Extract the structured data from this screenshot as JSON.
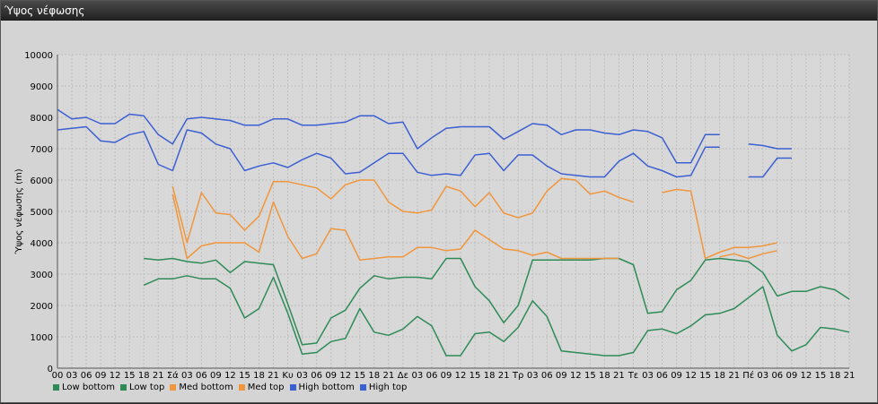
{
  "window": {
    "title": "Ύψος νέφωσης"
  },
  "chart_data": {
    "type": "line",
    "ylabel": "Ύψος νέφωσης (m)",
    "ylim": [
      0,
      10000
    ],
    "yticks": [
      0,
      1000,
      2000,
      3000,
      4000,
      5000,
      6000,
      7000,
      8000,
      9000,
      10000
    ],
    "xtick_labels": [
      "00",
      "03",
      "06",
      "09",
      "12",
      "15",
      "18",
      "21",
      "Σά",
      "03",
      "06",
      "09",
      "12",
      "15",
      "18",
      "21",
      "Κυ",
      "03",
      "06",
      "09",
      "12",
      "15",
      "18",
      "21",
      "Δε",
      "03",
      "06",
      "09",
      "12",
      "15",
      "18",
      "21",
      "Τρ",
      "03",
      "06",
      "09",
      "12",
      "15",
      "18",
      "21",
      "Τε",
      "03",
      "06",
      "09",
      "12",
      "15",
      "18",
      "21",
      "Πέ",
      "03",
      "06",
      "09",
      "12",
      "15",
      "18",
      "21"
    ],
    "grid": true,
    "legend_position": "bottom",
    "series": [
      {
        "name": "Low bottom",
        "color": "#2e8b57",
        "values": [
          null,
          null,
          null,
          null,
          null,
          null,
          2650,
          2850,
          2850,
          2950,
          2850,
          2850,
          2550,
          1600,
          1900,
          2900,
          1750,
          450,
          500,
          850,
          950,
          1900,
          1150,
          1050,
          1250,
          1650,
          1350,
          400,
          400,
          1100,
          1150,
          850,
          1300,
          2150,
          1650,
          550,
          500,
          450,
          400,
          400,
          500,
          1200,
          1250,
          1100,
          1350,
          1700,
          1750,
          1900,
          2250,
          2600,
          1050,
          550,
          750,
          1300,
          1250,
          1150
        ]
      },
      {
        "name": "Low top",
        "color": "#2e8b57",
        "values": [
          null,
          null,
          null,
          null,
          null,
          null,
          3500,
          3450,
          3500,
          3400,
          3350,
          3450,
          3050,
          3400,
          3350,
          3300,
          2050,
          750,
          800,
          1600,
          1850,
          2550,
          2950,
          2850,
          2900,
          2900,
          2850,
          3500,
          3500,
          2600,
          2150,
          1450,
          2000,
          3450,
          3450,
          3450,
          3450,
          3450,
          3500,
          3500,
          3300,
          1750,
          1800,
          2500,
          2800,
          3450,
          3500,
          3450,
          3400,
          3050,
          2300,
          2450,
          2450,
          2600,
          2500,
          2200
        ]
      },
      {
        "name": "Med bottom",
        "color": "#f0963c",
        "values": [
          null,
          null,
          null,
          null,
          null,
          null,
          null,
          null,
          5550,
          3500,
          3900,
          4000,
          4000,
          4000,
          3700,
          5300,
          4200,
          3500,
          3650,
          4450,
          4400,
          3450,
          3500,
          3550,
          3550,
          3850,
          3850,
          3750,
          3800,
          4400,
          4100,
          3800,
          3750,
          3600,
          3700,
          3500,
          3500,
          3500,
          3500,
          3500,
          null,
          null,
          null,
          null,
          null,
          null,
          3550,
          3650,
          3500,
          3650,
          3750,
          null,
          null,
          null,
          null,
          null
        ]
      },
      {
        "name": "Med top",
        "color": "#f0963c",
        "values": [
          null,
          null,
          null,
          null,
          null,
          null,
          null,
          null,
          5800,
          4000,
          5600,
          4950,
          4900,
          4400,
          4850,
          5950,
          5950,
          5850,
          5750,
          5400,
          5850,
          6000,
          6000,
          5300,
          5000,
          4950,
          5050,
          5800,
          5650,
          5150,
          5600,
          4950,
          4800,
          4950,
          5650,
          6050,
          6000,
          5550,
          5650,
          5450,
          5300,
          null,
          5600,
          5700,
          5650,
          3500,
          3700,
          3850,
          3850,
          3900,
          4000,
          null,
          null,
          null,
          null,
          null
        ]
      },
      {
        "name": "High bottom",
        "color": "#3c5fd2",
        "values": [
          7600,
          7650,
          7700,
          7250,
          7200,
          7450,
          7550,
          6500,
          6300,
          7600,
          7500,
          7150,
          7000,
          6300,
          6450,
          6550,
          6400,
          6650,
          6850,
          6700,
          6200,
          6250,
          6550,
          6850,
          6850,
          6250,
          6150,
          6200,
          6150,
          6800,
          6850,
          6300,
          6800,
          6800,
          6450,
          6200,
          6150,
          6100,
          6100,
          6600,
          6850,
          6450,
          6300,
          6100,
          6150,
          7050,
          7050,
          null,
          6100,
          6100,
          6700,
          6700,
          null,
          null,
          null,
          null
        ]
      },
      {
        "name": "High top",
        "color": "#3c5fd2",
        "values": [
          8250,
          7950,
          8000,
          7800,
          7800,
          8100,
          8050,
          7450,
          7150,
          7950,
          8000,
          7950,
          7900,
          7750,
          7750,
          7950,
          7950,
          7750,
          7750,
          7800,
          7850,
          8050,
          8050,
          7800,
          7850,
          7000,
          7350,
          7650,
          7700,
          7700,
          7700,
          7300,
          7550,
          7800,
          7750,
          7450,
          7600,
          7600,
          7500,
          7450,
          7600,
          7550,
          7350,
          6550,
          6550,
          7450,
          7450,
          null,
          7150,
          7100,
          7000,
          7000,
          null,
          null,
          null,
          null
        ]
      }
    ]
  }
}
